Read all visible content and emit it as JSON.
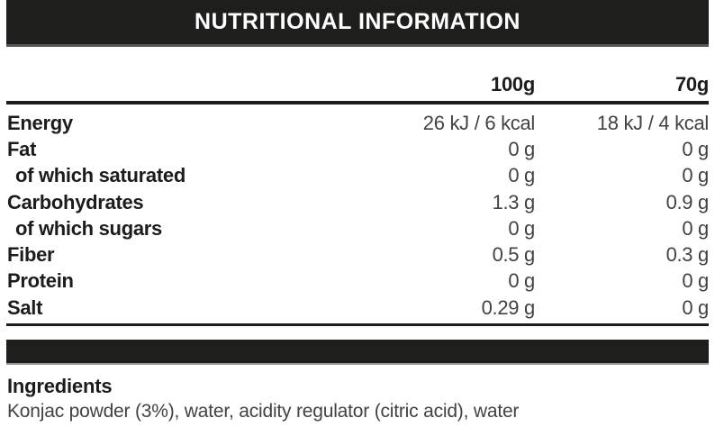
{
  "header": {
    "title": "NUTRITIONAL INFORMATION"
  },
  "table": {
    "col_headers": [
      "100g",
      "70g"
    ],
    "rows": [
      {
        "label": "Energy",
        "values": [
          "26 kJ / 6 kcal",
          "18 kJ / 4 kcal"
        ]
      },
      {
        "label": "Fat",
        "values": [
          "0 g",
          "0 g"
        ]
      },
      {
        "label": "of which saturated",
        "values": [
          "0 g",
          "0 g"
        ],
        "indent": true
      },
      {
        "label": "Carbohydrates",
        "values": [
          "1.3 g",
          "0.9 g"
        ]
      },
      {
        "label": "of which sugars",
        "values": [
          "0 g",
          "0 g"
        ],
        "indent": true
      },
      {
        "label": "Fiber",
        "values": [
          "0.5 g",
          "0.3 g"
        ]
      },
      {
        "label": "Protein",
        "values": [
          "0 g",
          "0 g"
        ]
      },
      {
        "label": "Salt",
        "values": [
          "0.29 g",
          "0 g"
        ]
      }
    ]
  },
  "ingredients": {
    "heading": "Ingredients",
    "text": "Konjac powder (3%), water, acidity regulator (citric acid), water"
  },
  "colors": {
    "bar": "#1e1e1c",
    "line": "#1d1d1b",
    "label-text": "#1c1c1a",
    "value-text": "#424242",
    "header-text": "#ffffff"
  }
}
